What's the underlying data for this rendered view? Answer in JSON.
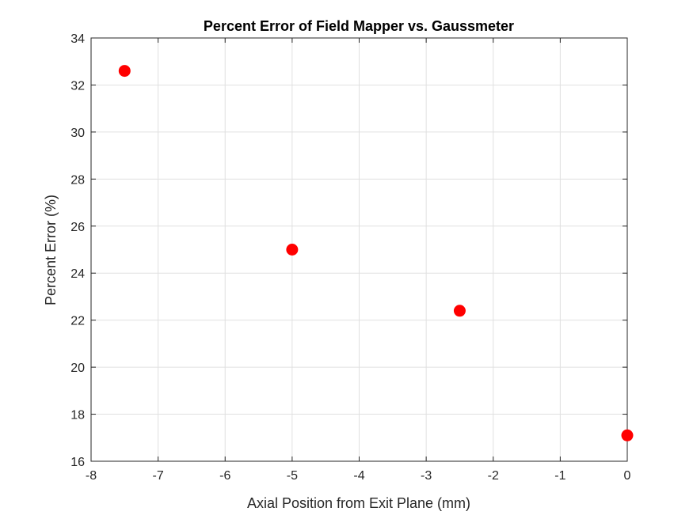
{
  "chart_data": {
    "type": "scatter",
    "title": "Percent Error of Field Mapper vs. Gaussmeter",
    "xlabel": "Axial Position from Exit Plane (mm)",
    "ylabel": "Percent Error (%)",
    "xlim": [
      -8,
      0
    ],
    "ylim": [
      16,
      34
    ],
    "xticks": [
      -8,
      -7,
      -6,
      -5,
      -4,
      -3,
      -2,
      -1,
      0
    ],
    "yticks": [
      16,
      18,
      20,
      22,
      24,
      26,
      28,
      30,
      32,
      34
    ],
    "xtick_labels": [
      "-8",
      "-7",
      "-6",
      "-5",
      "-4",
      "-3",
      "-2",
      "-1",
      "0"
    ],
    "ytick_labels": [
      "16",
      "18",
      "20",
      "22",
      "24",
      "26",
      "28",
      "30",
      "32",
      "34"
    ],
    "grid": true,
    "series": [
      {
        "color": "#ff0000",
        "marker": "filled-circle",
        "x": [
          -7.5,
          -5,
          -2.5,
          0
        ],
        "y": [
          32.6,
          25.0,
          22.4,
          17.1
        ]
      }
    ]
  }
}
